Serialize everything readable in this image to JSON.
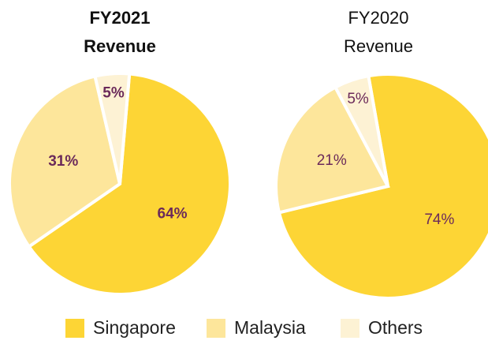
{
  "chart_data": [
    {
      "type": "pie",
      "title": [
        "FY2021",
        "Revenue"
      ],
      "font_weight": "bold",
      "categories": [
        "Singapore",
        "Malaysia",
        "Others"
      ],
      "values": [
        64,
        31,
        5
      ],
      "value_labels": [
        "64%",
        "31%",
        "5%"
      ],
      "colors": [
        "#fdd535",
        "#fde69b",
        "#fdf2d4"
      ],
      "legend": "bottom"
    },
    {
      "type": "pie",
      "title": [
        "FY2020",
        "Revenue"
      ],
      "font_weight": "normal",
      "categories": [
        "Singapore",
        "Malaysia",
        "Others"
      ],
      "values": [
        74,
        21,
        5
      ],
      "value_labels": [
        "74%",
        "21%",
        "5%"
      ],
      "colors": [
        "#fdd535",
        "#fde69b",
        "#fdf2d4"
      ],
      "legend": "bottom"
    }
  ]
}
